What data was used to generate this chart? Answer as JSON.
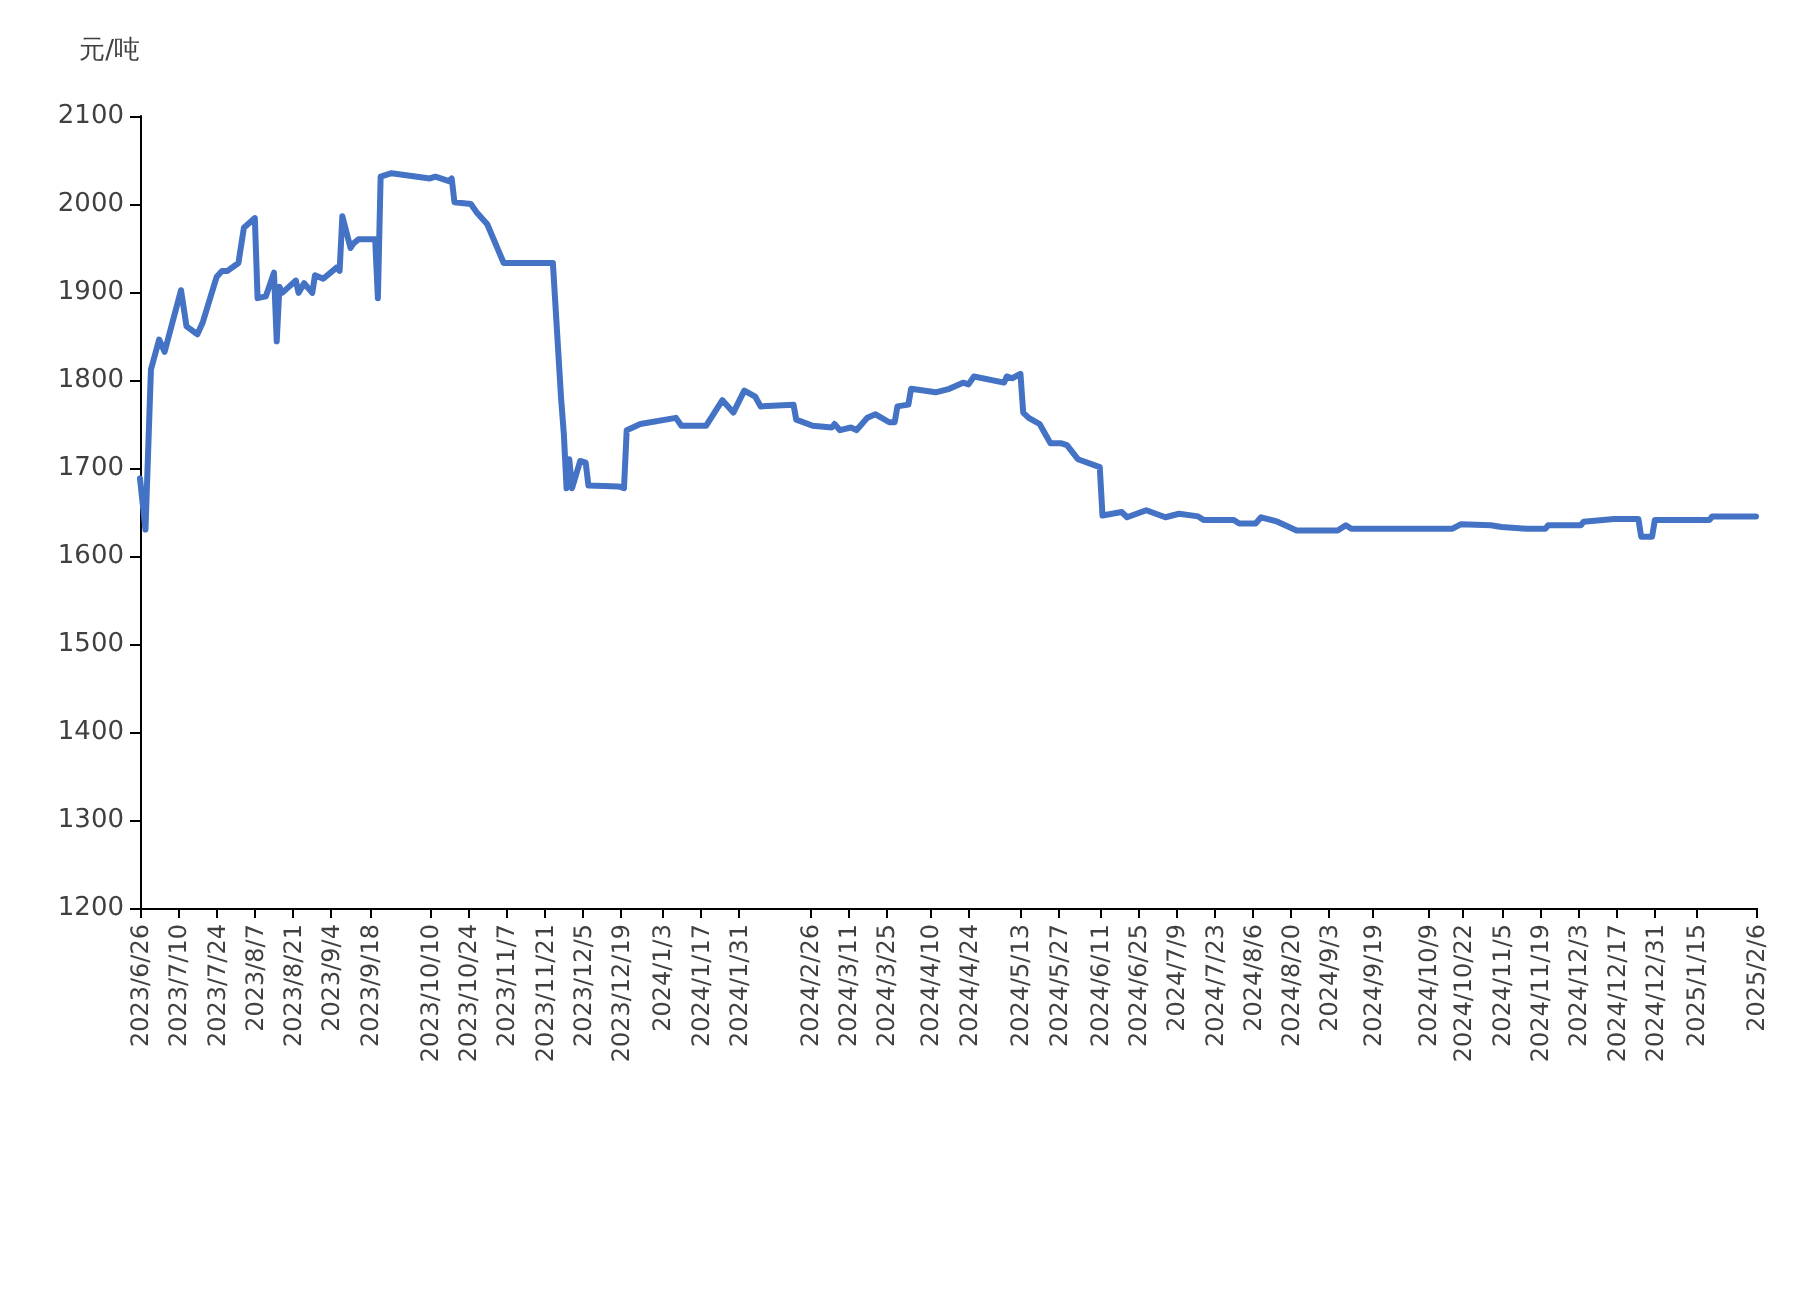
{
  "chart_data": {
    "type": "line",
    "ylabel": "元/吨",
    "xlim": [
      "2023-06-26",
      "2025-02-06"
    ],
    "ylim": [
      1200,
      2100
    ],
    "yticks": [
      1200,
      1300,
      1400,
      1500,
      1600,
      1700,
      1800,
      1900,
      2000,
      2100
    ],
    "xticks": [
      {
        "value": "2023-06-26",
        "label": "2023/6/26"
      },
      {
        "value": "2023-07-10",
        "label": "2023/7/10"
      },
      {
        "value": "2023-07-24",
        "label": "2023/7/24"
      },
      {
        "value": "2023-08-07",
        "label": "2023/8/7"
      },
      {
        "value": "2023-08-21",
        "label": "2023/8/21"
      },
      {
        "value": "2023-09-04",
        "label": "2023/9/4"
      },
      {
        "value": "2023-09-18",
        "label": "2023/9/18"
      },
      {
        "value": "2023-10-10",
        "label": "2023/10/10"
      },
      {
        "value": "2023-10-24",
        "label": "2023/10/24"
      },
      {
        "value": "2023-11-07",
        "label": "2023/11/7"
      },
      {
        "value": "2023-11-21",
        "label": "2023/11/21"
      },
      {
        "value": "2023-12-05",
        "label": "2023/12/5"
      },
      {
        "value": "2023-12-19",
        "label": "2023/12/19"
      },
      {
        "value": "2024-01-03",
        "label": "2024/1/3"
      },
      {
        "value": "2024-01-17",
        "label": "2024/1/17"
      },
      {
        "value": "2024-01-31",
        "label": "2024/1/31"
      },
      {
        "value": "2024-02-26",
        "label": "2024/2/26"
      },
      {
        "value": "2024-03-11",
        "label": "2024/3/11"
      },
      {
        "value": "2024-03-25",
        "label": "2024/3/25"
      },
      {
        "value": "2024-04-10",
        "label": "2024/4/10"
      },
      {
        "value": "2024-04-24",
        "label": "2024/4/24"
      },
      {
        "value": "2024-05-13",
        "label": "2024/5/13"
      },
      {
        "value": "2024-05-27",
        "label": "2024/5/27"
      },
      {
        "value": "2024-06-11",
        "label": "2024/6/11"
      },
      {
        "value": "2024-06-25",
        "label": "2024/6/25"
      },
      {
        "value": "2024-07-09",
        "label": "2024/7/9"
      },
      {
        "value": "2024-07-23",
        "label": "2024/7/23"
      },
      {
        "value": "2024-08-06",
        "label": "2024/8/6"
      },
      {
        "value": "2024-08-20",
        "label": "2024/8/20"
      },
      {
        "value": "2024-09-03",
        "label": "2024/9/3"
      },
      {
        "value": "2024-09-19",
        "label": "2024/9/19"
      },
      {
        "value": "2024-10-09",
        "label": "2024/10/9"
      },
      {
        "value": "2024-10-22",
        "label": "2024/10/22"
      },
      {
        "value": "2024-11-05",
        "label": "2024/11/5"
      },
      {
        "value": "2024-11-19",
        "label": "2024/11/19"
      },
      {
        "value": "2024-12-03",
        "label": "2024/12/3"
      },
      {
        "value": "2024-12-17",
        "label": "2024/12/17"
      },
      {
        "value": "2024-12-31",
        "label": "2024/12/31"
      },
      {
        "value": "2025-01-15",
        "label": "2025/1/15"
      },
      {
        "value": "2025-02-06",
        "label": "2025/2/6"
      }
    ],
    "x": [
      "2023-06-26",
      "2023-06-28",
      "2023-06-30",
      "2023-07-03",
      "2023-07-05",
      "2023-07-11",
      "2023-07-13",
      "2023-07-17",
      "2023-07-19",
      "2023-07-24",
      "2023-07-26",
      "2023-07-28",
      "2023-08-01",
      "2023-08-03",
      "2023-08-07",
      "2023-08-08",
      "2023-08-11",
      "2023-08-14",
      "2023-08-15",
      "2023-08-16",
      "2023-08-17",
      "2023-08-22",
      "2023-08-23",
      "2023-08-25",
      "2023-08-28",
      "2023-08-29",
      "2023-09-01",
      "2023-09-06",
      "2023-09-07",
      "2023-09-08",
      "2023-09-11",
      "2023-09-12",
      "2023-09-14",
      "2023-09-20",
      "2023-09-21",
      "2023-09-22",
      "2023-09-26",
      "2023-10-10",
      "2023-10-12",
      "2023-10-17",
      "2023-10-18",
      "2023-10-19",
      "2023-10-25",
      "2023-10-27",
      "2023-10-31",
      "2023-11-06",
      "2023-11-24",
      "2023-11-27",
      "2023-11-28",
      "2023-11-29",
      "2023-11-30",
      "2023-12-01",
      "2023-12-04",
      "2023-12-06",
      "2023-12-07",
      "2023-12-18",
      "2023-12-20",
      "2023-12-21",
      "2023-12-26",
      "2024-01-08",
      "2024-01-10",
      "2024-01-19",
      "2024-01-25",
      "2024-01-29",
      "2024-02-02",
      "2024-02-06",
      "2024-02-08",
      "2024-02-20",
      "2024-02-21",
      "2024-02-27",
      "2024-03-05",
      "2024-03-06",
      "2024-03-08",
      "2024-03-12",
      "2024-03-14",
      "2024-03-18",
      "2024-03-21",
      "2024-03-26",
      "2024-03-28",
      "2024-03-29",
      "2024-04-02",
      "2024-04-03",
      "2024-04-12",
      "2024-04-17",
      "2024-04-22",
      "2024-04-24",
      "2024-04-26",
      "2024-05-07",
      "2024-05-08",
      "2024-05-10",
      "2024-05-13",
      "2024-05-14",
      "2024-05-16",
      "2024-05-20",
      "2024-05-22",
      "2024-05-24",
      "2024-05-28",
      "2024-05-30",
      "2024-06-03",
      "2024-06-11",
      "2024-06-12",
      "2024-06-19",
      "2024-06-21",
      "2024-06-28",
      "2024-07-05",
      "2024-07-10",
      "2024-07-17",
      "2024-07-19",
      "2024-07-30",
      "2024-08-01",
      "2024-08-07",
      "2024-08-09",
      "2024-08-15",
      "2024-08-22",
      "2024-09-06",
      "2024-09-09",
      "2024-09-11",
      "2024-10-18",
      "2024-10-21",
      "2024-11-01",
      "2024-11-05",
      "2024-11-14",
      "2024-11-21",
      "2024-11-22",
      "2024-12-04",
      "2024-12-05",
      "2024-12-16",
      "2024-12-25",
      "2024-12-26",
      "2024-12-30",
      "2024-12-31",
      "2025-01-20",
      "2025-01-21",
      "2025-02-06"
    ],
    "series": [
      {
        "color": "#4472c4",
        "values": [
          1688,
          1630,
          1812,
          1846,
          1832,
          1902,
          1861,
          1852,
          1866,
          1917,
          1924,
          1924,
          1933,
          1973,
          1984,
          1893,
          1895,
          1922,
          1844,
          1906,
          1899,
          1913,
          1899,
          1910,
          1899,
          1919,
          1915,
          1928,
          1924,
          1986,
          1950,
          1955,
          1960,
          1960,
          1893,
          2031,
          2035,
          2029,
          2031,
          2026,
          2029,
          2002,
          2000,
          1991,
          1977,
          1933,
          1933,
          1779,
          1739,
          1677,
          1710,
          1677,
          1708,
          1706,
          1680,
          1679,
          1677,
          1743,
          1750,
          1757,
          1748,
          1748,
          1777,
          1763,
          1788,
          1781,
          1770,
          1772,
          1755,
          1748,
          1746,
          1750,
          1743,
          1746,
          1743,
          1757,
          1761,
          1752,
          1752,
          1770,
          1772,
          1790,
          1786,
          1790,
          1797,
          1795,
          1804,
          1797,
          1804,
          1802,
          1807,
          1763,
          1757,
          1750,
          1739,
          1728,
          1728,
          1726,
          1710,
          1701,
          1646,
          1650,
          1644,
          1652,
          1644,
          1648,
          1645,
          1641,
          1641,
          1637,
          1637,
          1644,
          1639,
          1629,
          1629,
          1635,
          1631,
          1631,
          1636,
          1635,
          1633,
          1631,
          1631,
          1635,
          1635,
          1639,
          1642,
          1642,
          1622,
          1622,
          1641,
          1641,
          1645,
          1645
        ]
      }
    ],
    "grid": false,
    "marker": "none",
    "line_style": "solid"
  }
}
